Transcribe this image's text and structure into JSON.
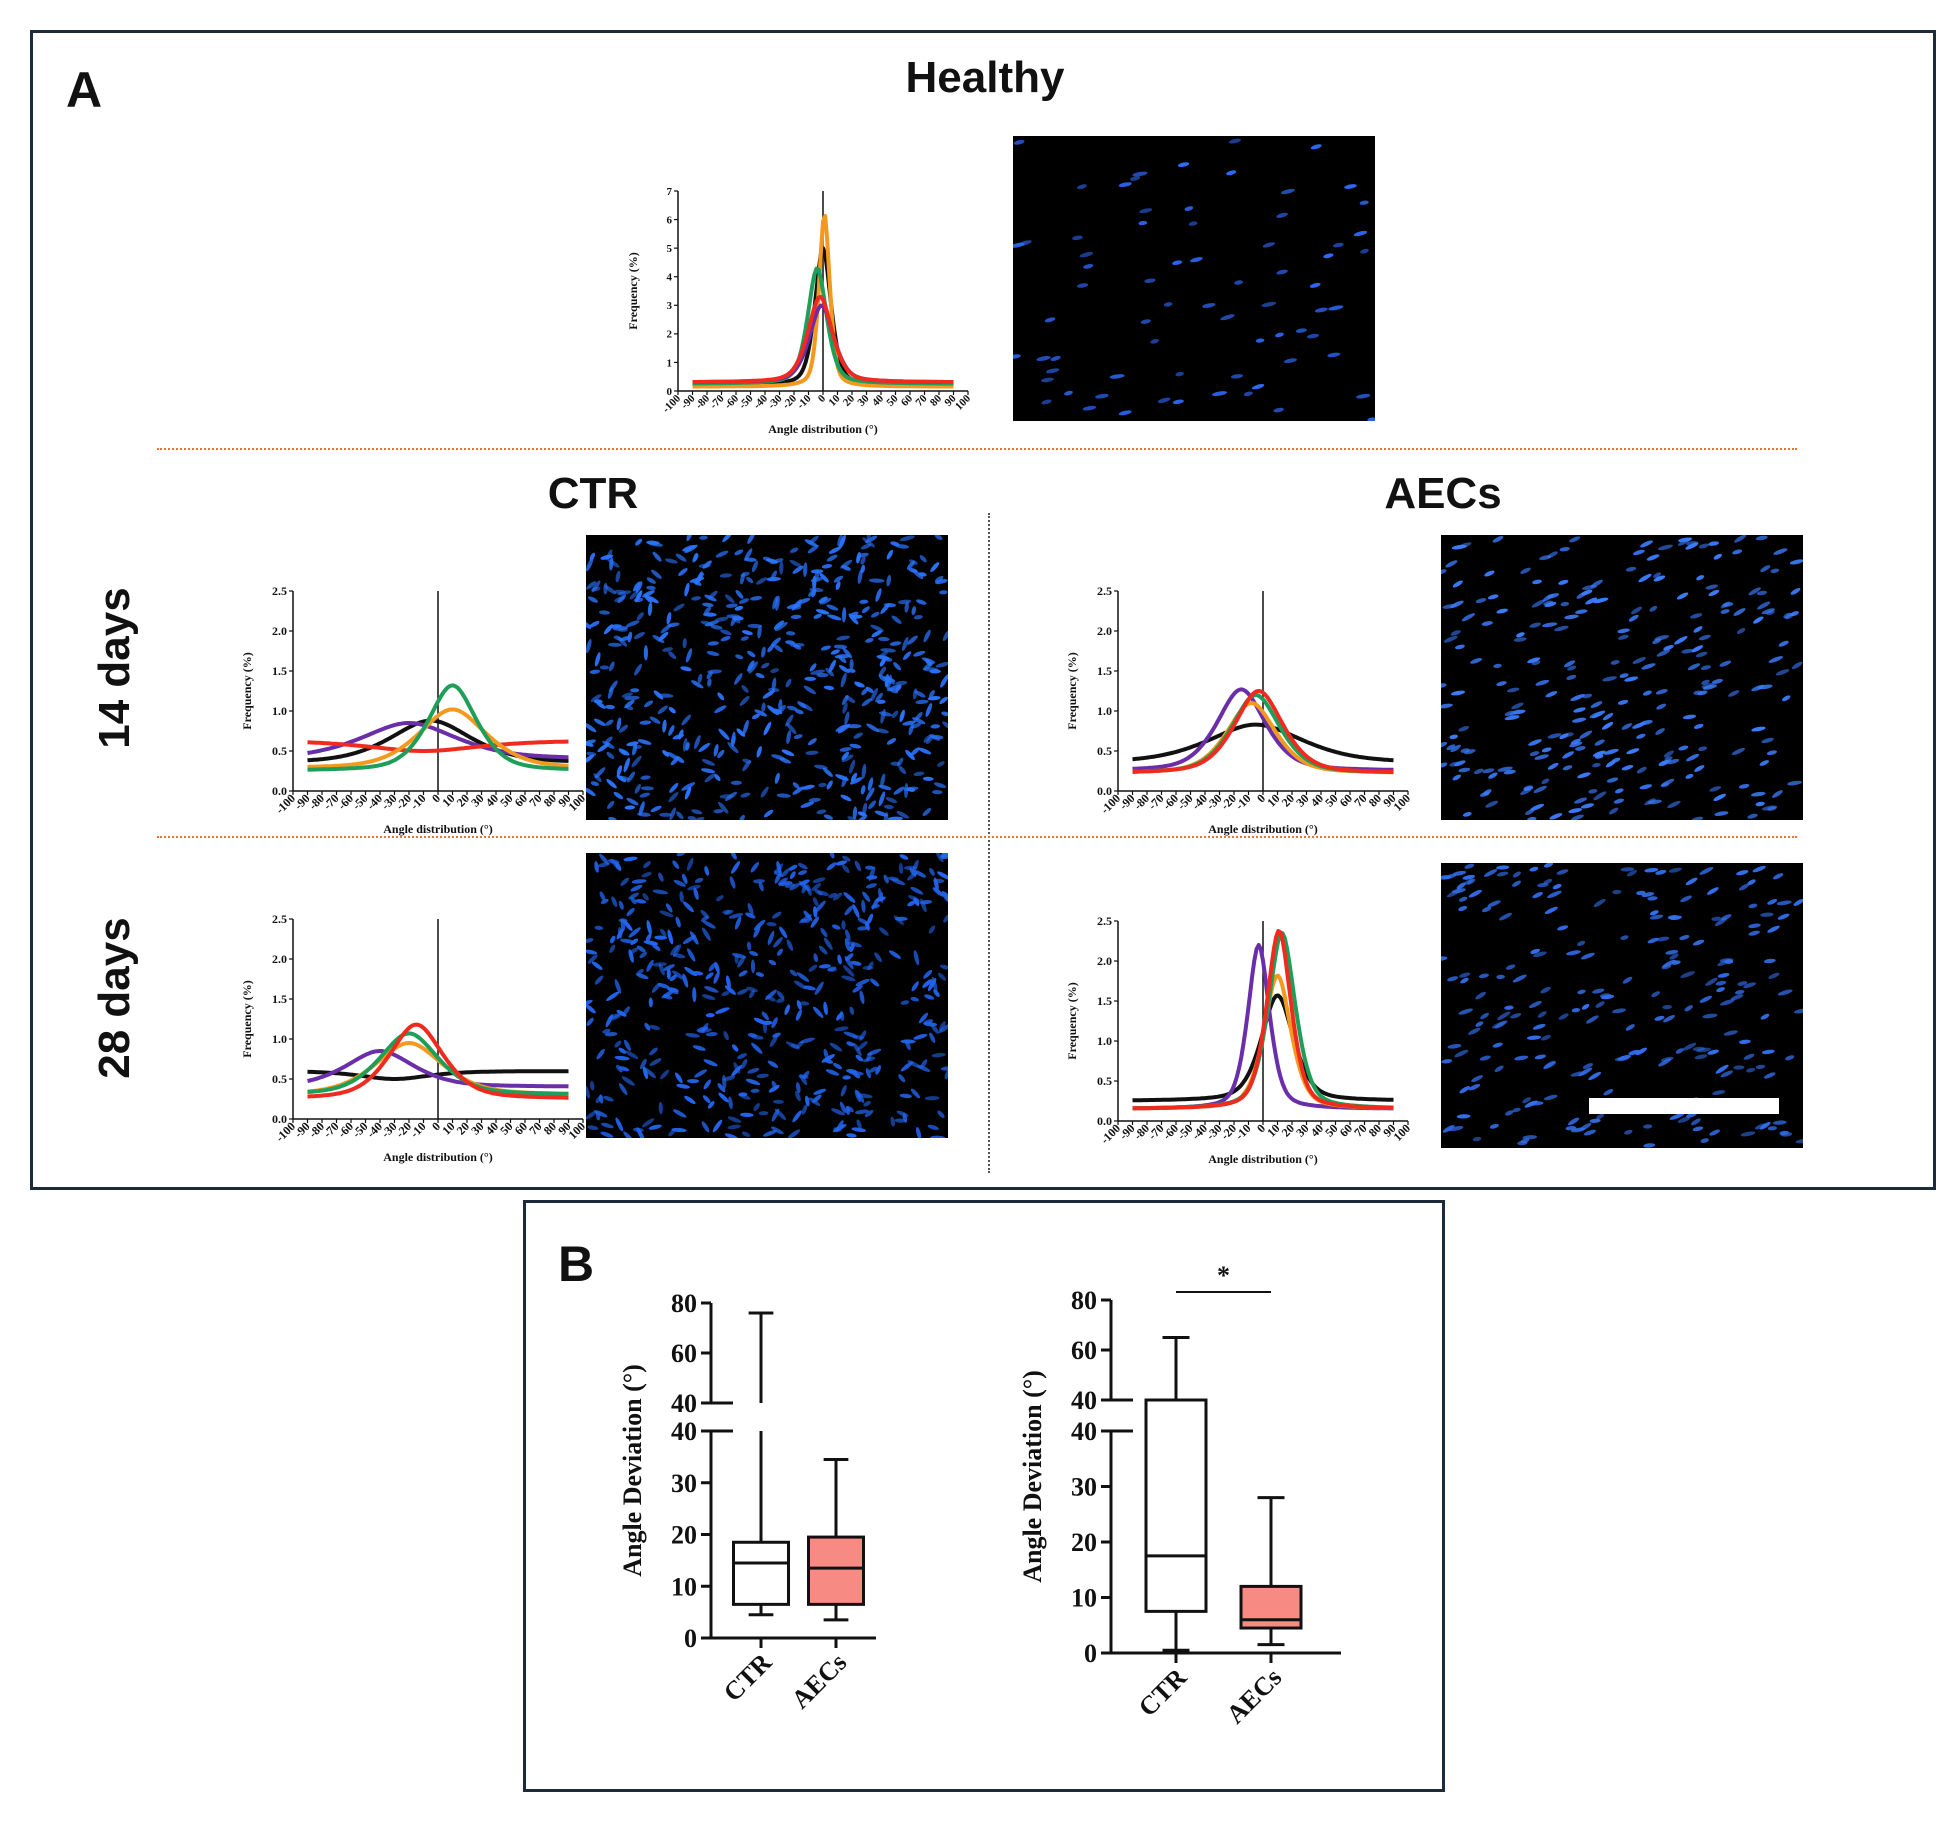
{
  "panel_a": {
    "label": "A",
    "healthy_title": "Healthy",
    "ctr_title": "CTR",
    "aecs_title": "AECs",
    "row_14": "14 days",
    "row_28": "28 days"
  },
  "panel_b": {
    "label": "B"
  },
  "colors": {
    "black": "#111111",
    "orange": "#f39a1e",
    "green": "#1f9e59",
    "purple": "#6a2fa8",
    "red": "#ef2a1e",
    "box_fill": "#f88a84",
    "frame": "#1c2a3a"
  },
  "chart_data": [
    {
      "id": "healthy",
      "type": "line",
      "title": "Healthy",
      "xlabel": "Angle distribution (°)",
      "ylabel": "Frequency (%)",
      "xlim": [
        -100,
        100
      ],
      "ylim": [
        0,
        7
      ],
      "xticks": [
        "-100",
        "-90",
        "-80",
        "-70",
        "-60",
        "-50",
        "-40",
        "-30",
        "-20",
        "-10",
        "0",
        "10",
        "20",
        "30",
        "40",
        "50",
        "60",
        "70",
        "80",
        "90",
        "100"
      ],
      "yticks": [
        "0",
        "1",
        "2",
        "3",
        "4",
        "5",
        "6",
        "7"
      ],
      "series": [
        {
          "color": "black",
          "peak": 0,
          "amp": 5.0,
          "base": 0.2,
          "width": 6
        },
        {
          "color": "orange",
          "peak": 1,
          "amp": 6.2,
          "base": 0.15,
          "width": 4
        },
        {
          "color": "green",
          "peak": -4,
          "amp": 4.3,
          "base": 0.25,
          "width": 7
        },
        {
          "color": "purple",
          "peak": -1,
          "amp": 3.0,
          "base": 0.3,
          "width": 9
        },
        {
          "color": "red",
          "peak": -2,
          "amp": 3.3,
          "base": 0.3,
          "width": 9
        }
      ]
    },
    {
      "id": "ctr14",
      "type": "line",
      "xlabel": "Angle distribution (°)",
      "ylabel": "Frequency (%)",
      "xlim": [
        -100,
        100
      ],
      "ylim": [
        0,
        2.5
      ],
      "xticks": [
        "-100",
        "-90",
        "-80",
        "-70",
        "-60",
        "-50",
        "-40",
        "-30",
        "-20",
        "-10",
        "0",
        "10",
        "20",
        "30",
        "40",
        "50",
        "60",
        "70",
        "80",
        "90",
        "100"
      ],
      "yticks": [
        "0.0",
        "0.5",
        "1.0",
        "1.5",
        "2.0",
        "2.5"
      ],
      "series": [
        {
          "color": "black",
          "peak": -5,
          "amp": 0.88,
          "base": 0.35,
          "width": 30
        },
        {
          "color": "purple",
          "peak": -20,
          "amp": 0.85,
          "base": 0.4,
          "width": 35
        },
        {
          "color": "red",
          "peak": -10,
          "amp": 0.5,
          "base": 0.63,
          "width": 40,
          "dip": true
        },
        {
          "color": "orange",
          "peak": 10,
          "amp": 1.02,
          "base": 0.28,
          "width": 25
        },
        {
          "color": "green",
          "peak": 10,
          "amp": 1.32,
          "base": 0.25,
          "width": 18
        }
      ]
    },
    {
      "id": "aecs14",
      "type": "line",
      "xlabel": "Angle distribution (°)",
      "ylabel": "Frequency (%)",
      "xlim": [
        -100,
        100
      ],
      "ylim": [
        0,
        2.5
      ],
      "xticks": [
        "-100",
        "-90",
        "-80",
        "-70",
        "-60",
        "-50",
        "-40",
        "-30",
        "-20",
        "-10",
        "0",
        "10",
        "20",
        "30",
        "40",
        "50",
        "60",
        "70",
        "80",
        "90",
        "100"
      ],
      "yticks": [
        "0.0",
        "0.5",
        "1.0",
        "1.5",
        "2.0",
        "2.5"
      ],
      "series": [
        {
          "color": "black",
          "peak": -5,
          "amp": 0.83,
          "base": 0.35,
          "width": 35
        },
        {
          "color": "purple",
          "peak": -15,
          "amp": 1.27,
          "base": 0.25,
          "width": 18
        },
        {
          "color": "orange",
          "peak": -8,
          "amp": 1.1,
          "base": 0.22,
          "width": 18
        },
        {
          "color": "green",
          "peak": -5,
          "amp": 1.2,
          "base": 0.22,
          "width": 18
        },
        {
          "color": "red",
          "peak": -3,
          "amp": 1.25,
          "base": 0.22,
          "width": 18
        }
      ]
    },
    {
      "id": "ctr28",
      "type": "line",
      "xlabel": "Angle distribution (°)",
      "ylabel": "Frequency (%)",
      "xlim": [
        -100,
        100
      ],
      "ylim": [
        0,
        2.5
      ],
      "xticks": [
        "-100",
        "-90",
        "-80",
        "-70",
        "-60",
        "-50",
        "-40",
        "-30",
        "-20",
        "-10",
        "0",
        "10",
        "20",
        "30",
        "40",
        "50",
        "60",
        "70",
        "80",
        "90",
        "100"
      ],
      "yticks": [
        "0.0",
        "0.5",
        "1.0",
        "1.5",
        "2.0",
        "2.5"
      ],
      "series": [
        {
          "color": "black",
          "peak": -30,
          "amp": 0.5,
          "base": 0.6,
          "width": 25,
          "dip": true
        },
        {
          "color": "purple",
          "peak": -40,
          "amp": 0.85,
          "base": 0.4,
          "width": 25
        },
        {
          "color": "orange",
          "peak": -20,
          "amp": 0.95,
          "base": 0.3,
          "width": 25
        },
        {
          "color": "green",
          "peak": -20,
          "amp": 1.07,
          "base": 0.3,
          "width": 22
        },
        {
          "color": "red",
          "peak": -15,
          "amp": 1.18,
          "base": 0.25,
          "width": 20
        }
      ]
    },
    {
      "id": "aecs28",
      "type": "line",
      "xlabel": "Angle distribution (°)",
      "ylabel": "Frequency (%)",
      "xlim": [
        -100,
        100
      ],
      "ylim": [
        0,
        2.5
      ],
      "xticks": [
        "-100",
        "-90",
        "-80",
        "-70",
        "-60",
        "-50",
        "-40",
        "-30",
        "-20",
        "-10",
        "0",
        "10",
        "20",
        "30",
        "40",
        "50",
        "60",
        "70",
        "80",
        "90",
        "100"
      ],
      "yticks": [
        "0.0",
        "0.5",
        "1.0",
        "1.5",
        "2.0",
        "2.5"
      ],
      "series": [
        {
          "color": "black",
          "peak": 10,
          "amp": 1.57,
          "base": 0.25,
          "width": 12
        },
        {
          "color": "purple",
          "peak": -3,
          "amp": 2.2,
          "base": 0.15,
          "width": 8
        },
        {
          "color": "orange",
          "peak": 10,
          "amp": 1.82,
          "base": 0.15,
          "width": 10
        },
        {
          "color": "green",
          "peak": 13,
          "amp": 2.35,
          "base": 0.15,
          "width": 10
        },
        {
          "color": "red",
          "peak": 11,
          "amp": 2.38,
          "base": 0.15,
          "width": 9
        }
      ]
    },
    {
      "id": "box14",
      "type": "box",
      "ylabel": "Angle Deviation (°)",
      "categories": [
        "CTR",
        "AECs"
      ],
      "upper_axis": {
        "range": [
          40,
          80
        ],
        "ticks": [
          "40",
          "60",
          "80"
        ]
      },
      "lower_axis": {
        "range": [
          0,
          40
        ],
        "ticks": [
          "0",
          "10",
          "20",
          "30",
          "40"
        ]
      },
      "boxes": [
        {
          "label": "CTR",
          "min": 4.5,
          "q1": 6.5,
          "median": 14.5,
          "q3": 18.5,
          "max": 76,
          "fill": "white"
        },
        {
          "label": "AECs",
          "min": 3.5,
          "q1": 6.5,
          "median": 13.5,
          "q3": 19.5,
          "max": 34.5,
          "fill": "pink"
        }
      ],
      "significance": ""
    },
    {
      "id": "box28",
      "type": "box",
      "ylabel": "Angle Deviation (°)",
      "categories": [
        "CTR",
        "AECs"
      ],
      "upper_axis": {
        "range": [
          40,
          80
        ],
        "ticks": [
          "40",
          "60",
          "80"
        ]
      },
      "lower_axis": {
        "range": [
          0,
          40
        ],
        "ticks": [
          "0",
          "10",
          "20",
          "30",
          "40"
        ]
      },
      "boxes": [
        {
          "label": "CTR",
          "min": 0.5,
          "q1": 7.5,
          "median": 17.5,
          "q3": 40,
          "max": 65,
          "fill": "white"
        },
        {
          "label": "AECs",
          "min": 1.5,
          "q1": 4.5,
          "median": 6,
          "q3": 12,
          "max": 28,
          "fill": "pink"
        }
      ],
      "significance": "*"
    }
  ]
}
